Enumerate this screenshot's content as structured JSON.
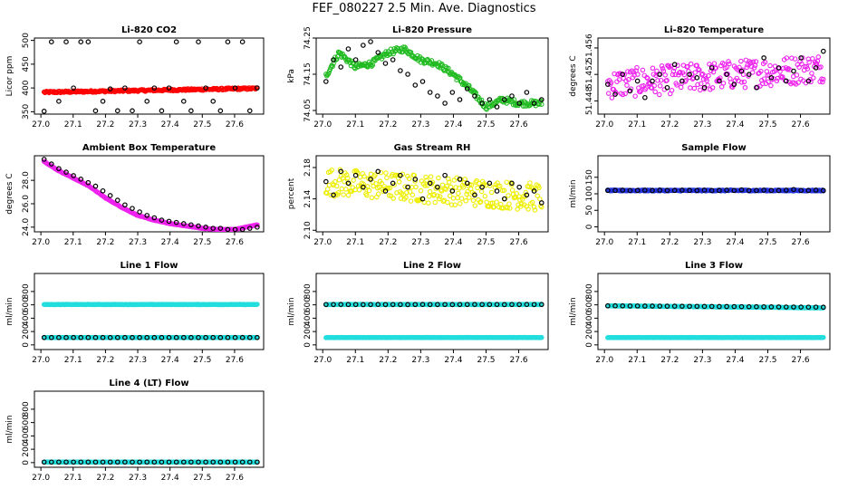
{
  "figure_title": "FEF_080227  2.5 Min. Ave. Diagnostics",
  "chart_data": [
    {
      "id": "co2",
      "type": "scatter",
      "title": "Li-820 CO2",
      "ylabel": "Licor ppm",
      "xlim": [
        26.98,
        27.69
      ],
      "ylim": [
        345,
        505
      ],
      "xticks": [
        "27.0",
        "27.1",
        "27.2",
        "27.3",
        "27.4",
        "27.5",
        "27.6"
      ],
      "yticks": [
        "350",
        "400",
        "450",
        "500"
      ],
      "series": [
        {
          "name": "primary",
          "color": "#ff0000",
          "base": 391,
          "trend": 8,
          "noise": 2
        },
        {
          "name": "alt",
          "color": "#000000",
          "values": [
            351,
            497,
            372,
            497,
            400,
            497,
            497,
            352,
            372,
            398,
            352,
            400,
            352,
            497,
            372,
            400,
            352,
            400,
            497,
            372,
            352,
            497,
            400,
            372,
            352,
            497,
            400,
            497,
            352,
            400
          ]
        }
      ]
    },
    {
      "id": "pressure",
      "type": "scatter",
      "title": "Li-820 Pressure",
      "ylabel": "kPa",
      "xlim": [
        26.98,
        27.69
      ],
      "ylim": [
        74.04,
        74.25
      ],
      "xticks": [
        "27.0",
        "27.1",
        "27.2",
        "27.3",
        "27.4",
        "27.5",
        "27.6"
      ],
      "yticks": [
        "74.05",
        "74.15",
        "74.25"
      ],
      "series": [
        {
          "name": "primary",
          "color": "#22bb22",
          "profile": [
            [
              27.0,
              74.13
            ],
            [
              27.05,
              74.21
            ],
            [
              27.1,
              74.17
            ],
            [
              27.15,
              74.18
            ],
            [
              27.2,
              74.21
            ],
            [
              27.25,
              74.22
            ],
            [
              27.3,
              74.19
            ],
            [
              27.35,
              74.18
            ],
            [
              27.4,
              74.15
            ],
            [
              27.45,
              74.11
            ],
            [
              27.5,
              74.06
            ],
            [
              27.55,
              74.08
            ],
            [
              27.6,
              74.07
            ],
            [
              27.67,
              74.07
            ]
          ],
          "noise": 0.008
        },
        {
          "name": "alt",
          "color": "#000000",
          "values": [
            74.13,
            74.19,
            74.17,
            74.22,
            74.19,
            74.23,
            74.24,
            74.21,
            74.18,
            74.19,
            74.16,
            74.15,
            74.12,
            74.13,
            74.1,
            74.09,
            74.07,
            74.1,
            74.08,
            74.11,
            74.09,
            74.07,
            74.08,
            74.06,
            74.08,
            74.09,
            74.07,
            74.1,
            74.07,
            74.08
          ]
        }
      ]
    },
    {
      "id": "temp",
      "type": "scatter",
      "title": "Li-820 Temperature",
      "ylabel": "degrees C",
      "xlim": [
        26.98,
        27.69
      ],
      "ylim": [
        51.446,
        51.4575
      ],
      "xticks": [
        "27.0",
        "27.1",
        "27.2",
        "27.3",
        "27.4",
        "27.5",
        "27.6"
      ],
      "yticks": [
        "51.448",
        "51.452",
        "51.456"
      ],
      "series": [
        {
          "name": "primary",
          "color": "#ee22ee",
          "base": 51.4505,
          "trend": 0.0025,
          "noise": 0.0022
        },
        {
          "name": "alt",
          "color": "#000000",
          "values": [
            51.4505,
            51.449,
            51.452,
            51.4495,
            51.451,
            51.4485,
            51.451,
            51.452,
            51.45,
            51.4535,
            51.451,
            51.452,
            51.4515,
            51.45,
            51.453,
            51.451,
            51.452,
            51.4505,
            51.4525,
            51.452,
            51.45,
            51.4545,
            51.4515,
            51.453,
            51.451,
            51.4525,
            51.4545,
            51.451,
            51.453,
            51.4555
          ]
        }
      ]
    },
    {
      "id": "box",
      "type": "scatter",
      "title": "Ambient Box Temperature",
      "ylabel": "degrees C",
      "xlim": [
        26.98,
        27.69
      ],
      "ylim": [
        23.6,
        30.1
      ],
      "xticks": [
        "27.0",
        "27.1",
        "27.2",
        "27.3",
        "27.4",
        "27.5",
        "27.6"
      ],
      "yticks": [
        "24.0",
        "26.0",
        "28.0"
      ],
      "series": [
        {
          "name": "primary",
          "color": "#ee22ee",
          "profile": [
            [
              27.0,
              29.8
            ],
            [
              27.05,
              28.9
            ],
            [
              27.1,
              28.2
            ],
            [
              27.15,
              27.5
            ],
            [
              27.2,
              26.5
            ],
            [
              27.25,
              25.7
            ],
            [
              27.3,
              25.0
            ],
            [
              27.35,
              24.6
            ],
            [
              27.4,
              24.3
            ],
            [
              27.45,
              24.1
            ],
            [
              27.5,
              23.9
            ],
            [
              27.55,
              23.8
            ],
            [
              27.6,
              23.8
            ],
            [
              27.67,
              24.2
            ]
          ],
          "noise": 0.02
        },
        {
          "name": "alt",
          "color": "#000000",
          "values": [
            29.8,
            29.4,
            29.0,
            28.7,
            28.4,
            28.1,
            27.8,
            27.5,
            27.1,
            26.7,
            26.3,
            25.9,
            25.6,
            25.3,
            25.0,
            24.8,
            24.6,
            24.5,
            24.4,
            24.3,
            24.2,
            24.1,
            24.0,
            23.9,
            23.9,
            23.8,
            23.8,
            23.8,
            23.9,
            24.0
          ]
        }
      ]
    },
    {
      "id": "rh",
      "type": "scatter",
      "title": "Gas Stream RH",
      "ylabel": "percent",
      "xlim": [
        26.98,
        27.69
      ],
      "ylim": [
        2.098,
        2.195
      ],
      "xticks": [
        "27.0",
        "27.1",
        "27.2",
        "27.3",
        "27.4",
        "27.5",
        "27.6"
      ],
      "yticks": [
        "2.10",
        "2.14",
        "2.18"
      ],
      "series": [
        {
          "name": "primary",
          "color": "#eeee00",
          "base": 2.162,
          "trend": -0.02,
          "noise": 0.018
        },
        {
          "name": "alt",
          "color": "#000000",
          "values": [
            2.162,
            2.145,
            2.175,
            2.16,
            2.17,
            2.155,
            2.165,
            2.175,
            2.15,
            2.16,
            2.17,
            2.155,
            2.165,
            2.14,
            2.16,
            2.155,
            2.17,
            2.15,
            2.165,
            2.16,
            2.145,
            2.155,
            2.16,
            2.15,
            2.14,
            2.16,
            2.155,
            2.145,
            2.15,
            2.135
          ]
        }
      ]
    },
    {
      "id": "sample",
      "type": "scatter",
      "title": "Sample Flow",
      "ylabel": "ml/min",
      "xlim": [
        26.98,
        27.69
      ],
      "ylim": [
        -15,
        215
      ],
      "xticks": [
        "27.0",
        "27.1",
        "27.2",
        "27.3",
        "27.4",
        "27.5",
        "27.6"
      ],
      "yticks": [
        "0",
        "50",
        "100",
        "150"
      ],
      "series": [
        {
          "name": "primary",
          "color": "#2233dd",
          "base": 110,
          "trend": 0,
          "noise": 1.5
        },
        {
          "name": "alt",
          "color": "#000000",
          "values": [
            110,
            110,
            111,
            110,
            110,
            111,
            110,
            111,
            110,
            110,
            111,
            110,
            110,
            111,
            110,
            110,
            111,
            110,
            112,
            110,
            110,
            111,
            110,
            110,
            111,
            113,
            110,
            110,
            111,
            110
          ]
        }
      ]
    },
    {
      "id": "line1",
      "type": "scatter",
      "title": "Line 1 Flow",
      "ylabel": "ml/min",
      "xlim": [
        26.98,
        27.69
      ],
      "ylim": [
        -70,
        1070
      ],
      "xticks": [
        "27.0",
        "27.1",
        "27.2",
        "27.3",
        "27.4",
        "27.5",
        "27.6"
      ],
      "yticks": [
        "0",
        "200",
        "400",
        "600",
        "800"
      ],
      "series": [
        {
          "name": "upper",
          "color": "#22dddd",
          "base": 605,
          "trend": 0,
          "noise": 3
        },
        {
          "name": "lower",
          "color": "#22dddd",
          "base": 110,
          "trend": 0,
          "noise": 2
        },
        {
          "name": "alt",
          "color": "#000000",
          "values": [
            110,
            110,
            110,
            110,
            110,
            110,
            110,
            110,
            110,
            110,
            110,
            110,
            110,
            110,
            110,
            110,
            110,
            110,
            110,
            110,
            110,
            110,
            110,
            110,
            110,
            110,
            110,
            110,
            110,
            110
          ]
        }
      ]
    },
    {
      "id": "line2",
      "type": "scatter",
      "title": "Line 2 Flow",
      "ylabel": "ml/min",
      "xlim": [
        26.98,
        27.69
      ],
      "ylim": [
        -70,
        1070
      ],
      "xticks": [
        "27.0",
        "27.1",
        "27.2",
        "27.3",
        "27.4",
        "27.5",
        "27.6"
      ],
      "yticks": [
        "0",
        "200",
        "400",
        "600",
        "800"
      ],
      "series": [
        {
          "name": "upper",
          "color": "#22dddd",
          "base": 605,
          "trend": 0,
          "noise": 3
        },
        {
          "name": "lower",
          "color": "#22dddd",
          "base": 110,
          "trend": 0,
          "noise": 2
        },
        {
          "name": "alt",
          "color": "#000000",
          "values": [
            605,
            605,
            606,
            605,
            605,
            604,
            605,
            606,
            605,
            605,
            605,
            604,
            605,
            606,
            605,
            605,
            605,
            604,
            605,
            605,
            606,
            605,
            605,
            605,
            604,
            605,
            605,
            606,
            605,
            605
          ]
        }
      ]
    },
    {
      "id": "line3",
      "type": "scatter",
      "title": "Line 3 Flow",
      "ylabel": "ml/min",
      "xlim": [
        26.98,
        27.69
      ],
      "ylim": [
        -70,
        1070
      ],
      "xticks": [
        "27.0",
        "27.1",
        "27.2",
        "27.3",
        "27.4",
        "27.5",
        "27.6"
      ],
      "yticks": [
        "0",
        "200",
        "400",
        "600",
        "800"
      ],
      "series": [
        {
          "name": "upper",
          "color": "#22dddd",
          "base": 585,
          "trend": -30,
          "noise": 4
        },
        {
          "name": "lower",
          "color": "#22dddd",
          "base": 110,
          "trend": 0,
          "noise": 2
        },
        {
          "name": "alt",
          "color": "#000000",
          "values": [
            585,
            585,
            584,
            583,
            583,
            582,
            582,
            581,
            580,
            580,
            579,
            578,
            578,
            577,
            576,
            575,
            575,
            574,
            573,
            572,
            572,
            571,
            570,
            569,
            568,
            568,
            567,
            566,
            566,
            565
          ]
        }
      ]
    },
    {
      "id": "line4",
      "type": "scatter",
      "title": "Line 4 (LT) Flow",
      "ylabel": "ml/min",
      "xlim": [
        26.98,
        27.69
      ],
      "ylim": [
        -70,
        1070
      ],
      "xticks": [
        "27.0",
        "27.1",
        "27.2",
        "27.3",
        "27.4",
        "27.5",
        "27.6"
      ],
      "yticks": [
        "0",
        "200",
        "400",
        "600",
        "800"
      ],
      "series": [
        {
          "name": "primary",
          "color": "#22dddd",
          "base": 8,
          "trend": 0,
          "noise": 2
        },
        {
          "name": "alt",
          "color": "#000000",
          "values": [
            8,
            8,
            8,
            8,
            8,
            8,
            8,
            8,
            8,
            8,
            8,
            8,
            8,
            8,
            8,
            8,
            8,
            8,
            8,
            8,
            8,
            8,
            8,
            8,
            8,
            8,
            8,
            8,
            8,
            8
          ]
        }
      ]
    }
  ]
}
